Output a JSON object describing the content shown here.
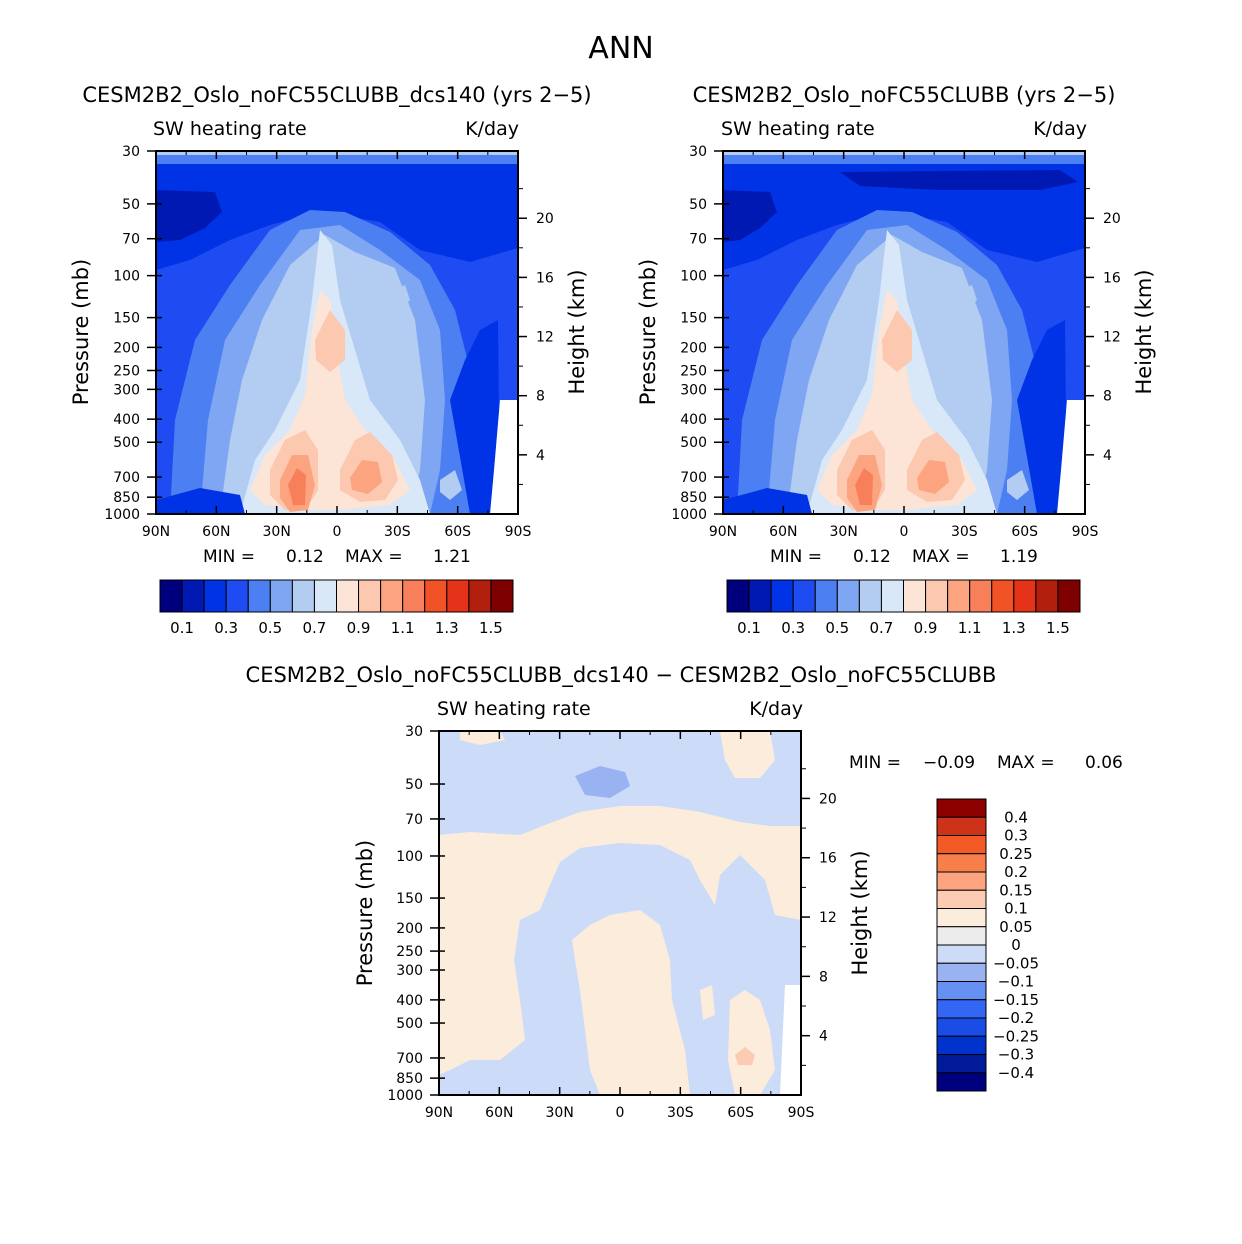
{
  "page_title": "ANN",
  "colors": {
    "top_scale": [
      "#00007f",
      "#0019b2",
      "#0033e5",
      "#1f4cf2",
      "#4c7ff2",
      "#7fa6f2",
      "#b2ccf2",
      "#d8e8f8",
      "#fce4d6",
      "#fcc8b0",
      "#fca47f",
      "#f77f5a",
      "#f25326",
      "#e53319",
      "#b21f0c",
      "#7f0000"
    ],
    "diff_scale": [
      "#00007f",
      "#001a99",
      "#0033cc",
      "#1a4ce6",
      "#3366f2",
      "#6690f2",
      "#99b2f2",
      "#ccdcf8",
      "#ececec",
      "#fcecdc",
      "#fcccb2",
      "#fca47f",
      "#f77f4c",
      "#f25a26",
      "#cc3319",
      "#8c0000"
    ]
  },
  "chart_data": [
    {
      "id": "panel-a",
      "type": "contour",
      "title": "CESM2B2_Oslo_noFC55CLUBB_dcs140 (yrs 2−5)",
      "left_subtitle": "SW heating rate",
      "right_subtitle": "K/day",
      "ylabel": "Pressure (mb)",
      "ylabel_right": "Height (km)",
      "x_ticks": [
        "90N",
        "60N",
        "30N",
        "0",
        "30S",
        "60S",
        "90S"
      ],
      "x_values": [
        90,
        60,
        30,
        0,
        -30,
        -60,
        -90
      ],
      "y_ticks": [
        "30",
        "50",
        "70",
        "100",
        "150",
        "200",
        "250",
        "300",
        "400",
        "500",
        "700",
        "850",
        "1000"
      ],
      "y_values": [
        30,
        50,
        70,
        100,
        150,
        200,
        250,
        300,
        400,
        500,
        700,
        850,
        1000
      ],
      "height_ticks": [
        "20",
        "16",
        "12",
        "8",
        "4"
      ],
      "height_values": [
        20,
        16,
        12,
        8,
        4
      ],
      "ylim": [
        30,
        1000
      ],
      "stats": {
        "min_label": "MIN =",
        "min": "0.12",
        "max_label": "MAX =",
        "max": "1.21"
      },
      "colorbar": {
        "levels": [
          "0.1",
          "0.3",
          "0.5",
          "0.7",
          "0.9",
          "1.1",
          "1.3",
          "1.5"
        ]
      }
    },
    {
      "id": "panel-b",
      "type": "contour",
      "title": "CESM2B2_Oslo_noFC55CLUBB (yrs 2−5)",
      "left_subtitle": "SW heating rate",
      "right_subtitle": "K/day",
      "ylabel": "Pressure (mb)",
      "ylabel_right": "Height (km)",
      "x_ticks": [
        "90N",
        "60N",
        "30N",
        "0",
        "30S",
        "60S",
        "90S"
      ],
      "x_values": [
        90,
        60,
        30,
        0,
        -30,
        -60,
        -90
      ],
      "y_ticks": [
        "30",
        "50",
        "70",
        "100",
        "150",
        "200",
        "250",
        "300",
        "400",
        "500",
        "700",
        "850",
        "1000"
      ],
      "y_values": [
        30,
        50,
        70,
        100,
        150,
        200,
        250,
        300,
        400,
        500,
        700,
        850,
        1000
      ],
      "height_ticks": [
        "20",
        "16",
        "12",
        "8",
        "4"
      ],
      "height_values": [
        20,
        16,
        12,
        8,
        4
      ],
      "ylim": [
        30,
        1000
      ],
      "stats": {
        "min_label": "MIN =",
        "min": "0.12",
        "max_label": "MAX =",
        "max": "1.19"
      },
      "colorbar": {
        "levels": [
          "0.1",
          "0.3",
          "0.5",
          "0.7",
          "0.9",
          "1.1",
          "1.3",
          "1.5"
        ]
      }
    },
    {
      "id": "panel-diff",
      "type": "contour",
      "title": "CESM2B2_Oslo_noFC55CLUBB_dcs140 − CESM2B2_Oslo_noFC55CLUBB",
      "left_subtitle": "SW heating rate",
      "right_subtitle": "K/day",
      "ylabel": "Pressure (mb)",
      "ylabel_right": "Height (km)",
      "x_ticks": [
        "90N",
        "60N",
        "30N",
        "0",
        "30S",
        "60S",
        "90S"
      ],
      "x_values": [
        90,
        60,
        30,
        0,
        -30,
        -60,
        -90
      ],
      "y_ticks": [
        "30",
        "50",
        "70",
        "100",
        "150",
        "200",
        "250",
        "300",
        "400",
        "500",
        "700",
        "850",
        "1000"
      ],
      "y_values": [
        30,
        50,
        70,
        100,
        150,
        200,
        250,
        300,
        400,
        500,
        700,
        850,
        1000
      ],
      "height_ticks": [
        "20",
        "16",
        "12",
        "8",
        "4"
      ],
      "height_values": [
        20,
        16,
        12,
        8,
        4
      ],
      "ylim": [
        30,
        1000
      ],
      "stats": {
        "min_label": "MIN =",
        "min": "−0.09",
        "max_label": "MAX =",
        "max": "0.06"
      },
      "colorbar": {
        "levels": [
          "0.4",
          "0.3",
          "0.25",
          "0.2",
          "0.15",
          "0.1",
          "0.05",
          "0",
          "−0.05",
          "−0.1",
          "−0.15",
          "−0.2",
          "−0.25",
          "−0.3",
          "−0.4"
        ]
      }
    }
  ]
}
